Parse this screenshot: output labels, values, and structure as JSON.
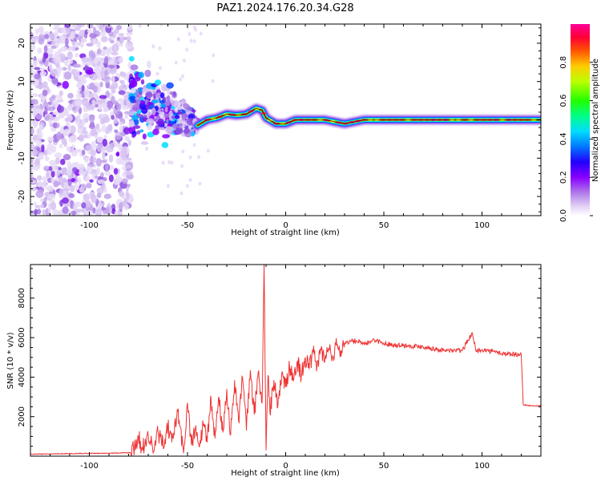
{
  "figure_title": "PAZ1.2024.176.20.34.G28",
  "chart_data": [
    {
      "type": "heatmap",
      "panel": "top",
      "xlabel": "Height of straight line (km)",
      "ylabel": "Frequency (Hz)",
      "xlim": [
        -130,
        130
      ],
      "ylim": [
        -25,
        25
      ],
      "xticks": [
        -100,
        -50,
        0,
        50,
        100
      ],
      "yticks": [
        -20,
        -10,
        0,
        10,
        20
      ],
      "colorbar": {
        "label": "Normalized spectral amplitude",
        "range": [
          0,
          1
        ],
        "ticks": [
          "0.0",
          "0.2",
          "0.4",
          "0.6",
          "0.8"
        ],
        "colormap": "gist_rainbow_r",
        "stops": [
          "#ffffff",
          "#c9a6f0",
          "#8800ff",
          "#2200ff",
          "#0066ff",
          "#00ccff",
          "#00ff88",
          "#33ff00",
          "#ccff00",
          "#ffcc00",
          "#ff5500",
          "#ff0033",
          "#ff0099"
        ]
      },
      "ridge": {
        "x": [
          -45,
          -40,
          -35,
          -30,
          -25,
          -20,
          -15,
          -12,
          -10,
          -5,
          0,
          5,
          10,
          20,
          30,
          40,
          50,
          60,
          70,
          80,
          90,
          100,
          110,
          120,
          130
        ],
        "y": [
          -1.5,
          0,
          0.5,
          1.5,
          1.2,
          1.5,
          3,
          2.5,
          0.5,
          -1,
          -1,
          0,
          0,
          0,
          -1,
          0,
          0,
          0,
          0,
          0,
          0,
          0,
          0,
          0,
          0
        ]
      },
      "noise_region_x": [
        -130,
        -79
      ],
      "transition_region_x": [
        -79,
        -45
      ]
    },
    {
      "type": "line",
      "panel": "bottom",
      "xlabel": "Height of straight line (km)",
      "ylabel": "SNR (10 * v/v)",
      "xlim": [
        -130,
        130
      ],
      "ylim": [
        0,
        9700
      ],
      "xticks": [
        -100,
        -50,
        0,
        50,
        100
      ],
      "yticks": [
        2000,
        4000,
        6000,
        8000
      ],
      "color": "#ee3333",
      "series": [
        {
          "x": [
            -130,
            -110,
            -90,
            -79,
            -77,
            -75,
            -73,
            -70,
            -67,
            -65,
            -62,
            -60,
            -58,
            -55,
            -52,
            -50,
            -48,
            -46,
            -44,
            -42,
            -40,
            -38,
            -36,
            -34,
            -32,
            -30,
            -28,
            -26,
            -24,
            -22,
            -20,
            -18,
            -16,
            -14,
            -12,
            -11,
            -10,
            -9,
            -8,
            -6,
            -4,
            -2,
            0,
            2,
            4,
            6,
            8,
            10,
            12,
            14,
            16,
            18,
            20,
            22,
            24,
            26,
            28,
            30,
            33,
            36,
            40,
            45,
            50,
            60,
            70,
            80,
            90,
            95,
            97,
            100,
            110,
            119,
            120,
            121,
            125,
            130
          ],
          "y": [
            100,
            130,
            150,
            180,
            500,
            950,
            380,
            1050,
            300,
            1200,
            450,
            1500,
            700,
            2250,
            150,
            2700,
            550,
            1350,
            450,
            1600,
            700,
            2900,
            900,
            3000,
            1200,
            3400,
            1100,
            3850,
            1800,
            4000,
            1300,
            4350,
            2100,
            4250,
            2700,
            9700,
            300,
            4100,
            2200,
            3850,
            2500,
            4200,
            3500,
            4500,
            3800,
            4800,
            4100,
            5000,
            4400,
            5250,
            4600,
            5350,
            4900,
            5450,
            5100,
            5600,
            5350,
            5750,
            5800,
            5850,
            5650,
            5900,
            5700,
            5600,
            5550,
            5350,
            5350,
            6250,
            5300,
            5400,
            5200,
            5150,
            5100,
            2600,
            2550,
            2550
          ]
        }
      ]
    }
  ]
}
